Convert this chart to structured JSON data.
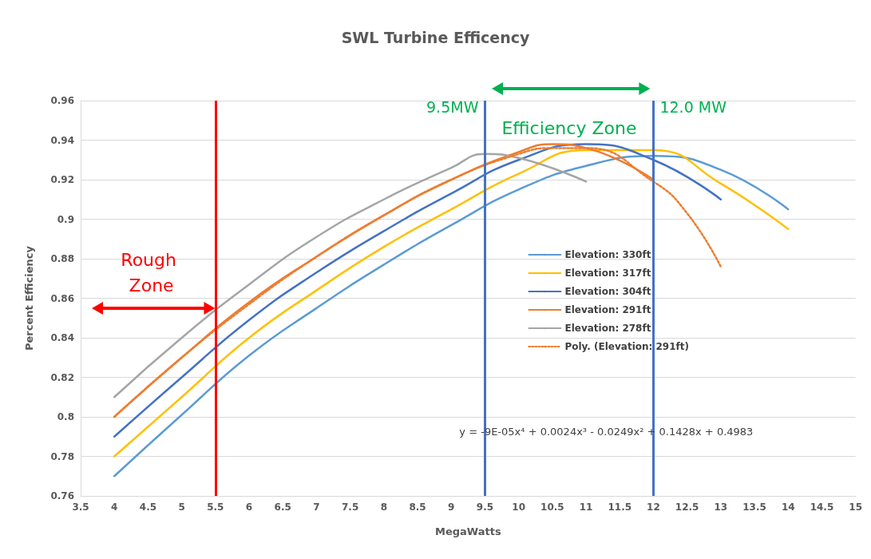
{
  "chart_data": {
    "type": "line",
    "title": "SWL Turbine Efficency",
    "xlabel": "MegaWatts",
    "ylabel": "Percent Efficiency",
    "xlim": [
      3.5,
      15
    ],
    "xticks": [
      3.5,
      4,
      4.5,
      5,
      5.5,
      6,
      6.5,
      7,
      7.5,
      8,
      8.5,
      9,
      9.5,
      10,
      10.5,
      11,
      11.5,
      12,
      12.5,
      13,
      13.5,
      14,
      14.5,
      15
    ],
    "ylim": [
      0.76,
      0.96
    ],
    "yticks": [
      0.76,
      0.78,
      0.8,
      0.82,
      0.84,
      0.86,
      0.88,
      0.9,
      0.92,
      0.94,
      0.96
    ],
    "grid": "y",
    "legend": "right",
    "marker": "none",
    "series": [
      {
        "name": "Elevation: 330ft",
        "color": "#5b9bd5",
        "x": [
          4,
          5,
          6,
          7,
          8,
          9,
          10,
          11,
          12,
          13,
          14
        ],
        "values": [
          0.77,
          0.801,
          0.831,
          0.855,
          0.877,
          0.897,
          0.915,
          0.927,
          0.932,
          0.925,
          0.905
        ]
      },
      {
        "name": "Elevation: 317ft",
        "color": "#ffc000",
        "x": [
          4,
          5,
          6,
          7,
          8,
          9,
          10,
          11,
          12,
          13,
          14
        ],
        "values": [
          0.78,
          0.81,
          0.84,
          0.864,
          0.886,
          0.905,
          0.923,
          0.935,
          0.935,
          0.918,
          0.895
        ]
      },
      {
        "name": "Elevation: 304ft",
        "color": "#4472c4",
        "x": [
          4,
          5,
          6,
          7,
          8,
          9,
          10,
          11,
          12,
          13
        ],
        "values": [
          0.79,
          0.82,
          0.849,
          0.873,
          0.894,
          0.913,
          0.93,
          0.938,
          0.93,
          0.91
        ]
      },
      {
        "name": "Elevation: 291ft",
        "color": "#ed7d31",
        "x": [
          4,
          5,
          6,
          7,
          8,
          9,
          10,
          10.5,
          11,
          12
        ],
        "values": [
          0.8,
          0.83,
          0.858,
          0.881,
          0.902,
          0.92,
          0.934,
          0.938,
          0.936,
          0.92
        ]
      },
      {
        "name": "Elevation: 278ft",
        "color": "#a5a5a5",
        "x": [
          4,
          5,
          6,
          7,
          8,
          9,
          9.5,
          10,
          11
        ],
        "values": [
          0.81,
          0.84,
          0.867,
          0.891,
          0.91,
          0.926,
          0.933,
          0.931,
          0.919
        ]
      },
      {
        "name": "Poly. (Elevation: 291ft)",
        "color": "#ed7d31",
        "line_style": "dotted",
        "x": [
          4,
          5,
          6,
          7,
          8,
          9,
          10,
          10.5,
          11,
          12,
          12.5,
          13
        ],
        "values": [
          0.8,
          0.83,
          0.857,
          0.881,
          0.902,
          0.92,
          0.933,
          0.936,
          0.936,
          0.919,
          0.903,
          0.876
        ]
      }
    ],
    "ref_lines": [
      {
        "axis": "x",
        "value": 5.5,
        "color": "#ff0000"
      },
      {
        "axis": "x",
        "value": 9.5,
        "label": "9.5MW",
        "color": "#4472c4"
      },
      {
        "axis": "x",
        "value": 12.0,
        "label": "12.0 MW",
        "color": "#4472c4"
      }
    ],
    "annotations": [
      "Rough Zone",
      "Efficiency Zone",
      "y = -9E-05x⁴ + 0.0024x³ - 0.0249x² + 0.1428x + 0.4983"
    ]
  }
}
